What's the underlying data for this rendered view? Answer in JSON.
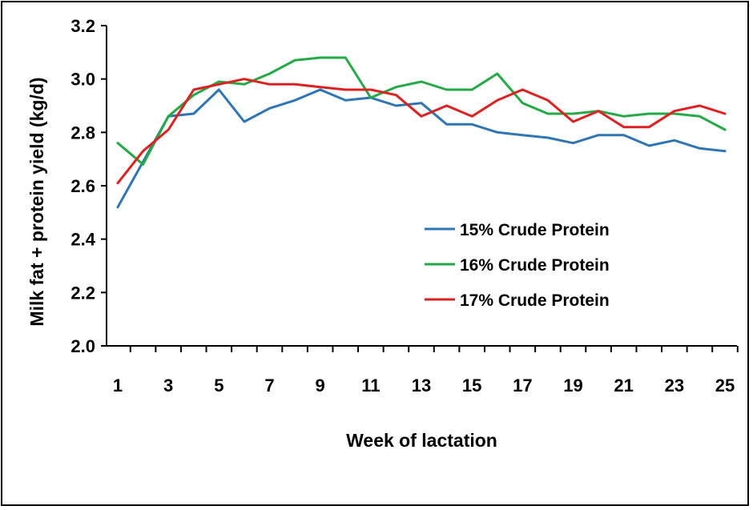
{
  "chart_data": {
    "type": "line",
    "title": "",
    "xlabel": "Week of lactation",
    "ylabel": "Milk fat + protein yield (kg/d)",
    "x": [
      1,
      2,
      3,
      4,
      5,
      6,
      7,
      8,
      9,
      10,
      11,
      12,
      13,
      14,
      15,
      16,
      17,
      18,
      19,
      20,
      21,
      22,
      23,
      24,
      25
    ],
    "xlim": [
      1,
      25
    ],
    "ylim": [
      2.0,
      3.2
    ],
    "xticks": [
      "1",
      "3",
      "5",
      "7",
      "9",
      "11",
      "13",
      "15",
      "17",
      "19",
      "21",
      "23",
      "25"
    ],
    "yticks": [
      "2.0",
      "2.2",
      "2.4",
      "2.6",
      "2.8",
      "3.0",
      "3.2"
    ],
    "grid": false,
    "legend_position": "center-right",
    "series": [
      {
        "name": "15% Crude Protein",
        "color": "#2e75b6",
        "values": [
          2.52,
          2.69,
          2.86,
          2.87,
          2.96,
          2.84,
          2.89,
          2.92,
          2.96,
          2.92,
          2.93,
          2.9,
          2.91,
          2.83,
          2.83,
          2.8,
          2.79,
          2.78,
          2.76,
          2.79,
          2.79,
          2.75,
          2.77,
          2.74,
          2.73
        ]
      },
      {
        "name": "16% Crude Protein",
        "color": "#22aa44",
        "values": [
          2.76,
          2.68,
          2.86,
          2.94,
          2.99,
          2.98,
          3.02,
          3.07,
          3.08,
          3.08,
          2.93,
          2.97,
          2.99,
          2.96,
          2.96,
          3.02,
          2.91,
          2.87,
          2.87,
          2.88,
          2.86,
          2.87,
          2.87,
          2.86,
          2.81
        ]
      },
      {
        "name": "17% Crude Protein",
        "color": "#e02020",
        "values": [
          2.61,
          2.73,
          2.81,
          2.96,
          2.98,
          3.0,
          2.98,
          2.98,
          2.97,
          2.96,
          2.96,
          2.94,
          2.86,
          2.9,
          2.86,
          2.92,
          2.96,
          2.92,
          2.84,
          2.88,
          2.82,
          2.82,
          2.88,
          2.9,
          2.87
        ]
      }
    ]
  }
}
